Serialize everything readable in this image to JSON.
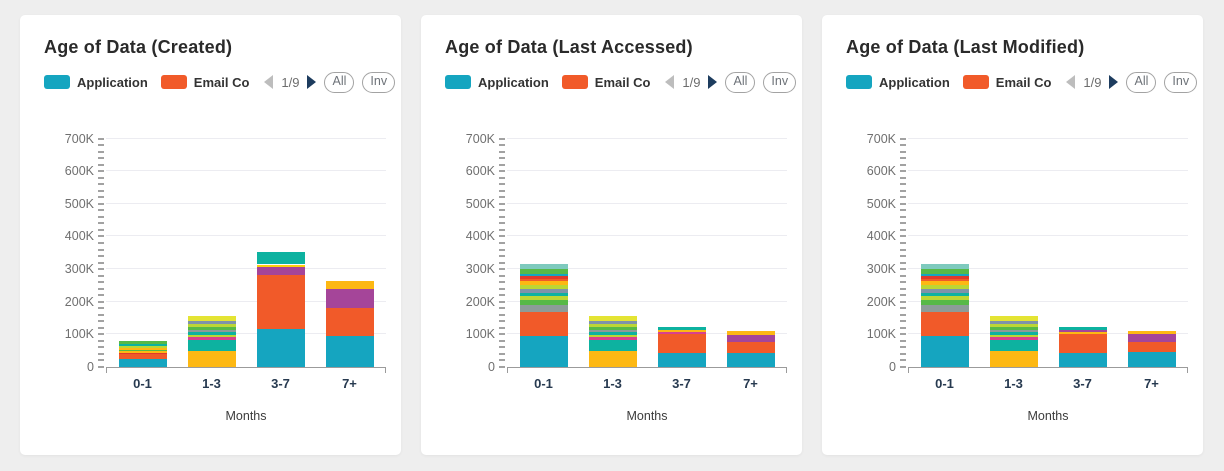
{
  "palette": {
    "teal": "#15a5c0",
    "orange": "#f15a29",
    "red": "#e0392b",
    "amber": "#fdb813",
    "yellow": "#fdd10c",
    "limeYellow": "#e4e433",
    "lime": "#bcd635",
    "green": "#57b947",
    "seaGreen": "#0db2a0",
    "ltTeal": "#7ecabe",
    "gray": "#8d9c98",
    "grayBlue": "#7f93a9",
    "magenta": "#d7418e",
    "purple": "#a54599",
    "next_arrow": "#1d3c5e",
    "prev_arrow": "#bdbdbd"
  },
  "chart_data": [
    {
      "type": "bar",
      "stacked": true,
      "title": "Age of Data (Created)",
      "xlabel": "Months",
      "ylabel": "",
      "unit": "thousands",
      "ylim": [
        0,
        700
      ],
      "ytick_step": 100,
      "yminor_step": 20,
      "grid": true,
      "categories": [
        "0-1",
        "1-3",
        "3-7",
        "7+"
      ],
      "totals_K": [
        78,
        157,
        353,
        263
      ],
      "bars": [
        {
          "category": "0-1",
          "segments": [
            {
              "color": "teal",
              "value": 24
            },
            {
              "color": "orange",
              "value": 14
            },
            {
              "color": "red",
              "value": 5
            },
            {
              "color": "amber",
              "value": 5
            },
            {
              "color": "green",
              "value": 5
            },
            {
              "color": "amber",
              "value": 5
            },
            {
              "color": "lime",
              "value": 6
            },
            {
              "color": "seaGreen",
              "value": 7
            },
            {
              "color": "green",
              "value": 7
            }
          ]
        },
        {
          "category": "1-3",
          "segments": [
            {
              "color": "amber",
              "value": 48
            },
            {
              "color": "seaGreen",
              "value": 34
            },
            {
              "color": "magenta",
              "value": 8
            },
            {
              "color": "lime",
              "value": 8
            },
            {
              "color": "seaGreen",
              "value": 8
            },
            {
              "color": "gray",
              "value": 8
            },
            {
              "color": "green",
              "value": 9
            },
            {
              "color": "lime",
              "value": 9
            },
            {
              "color": "grayBlue",
              "value": 8
            },
            {
              "color": "limeYellow",
              "value": 17
            }
          ]
        },
        {
          "category": "3-7",
          "segments": [
            {
              "color": "teal",
              "value": 115
            },
            {
              "color": "orange",
              "value": 167
            },
            {
              "color": "purple",
              "value": 24
            },
            {
              "color": "yellow",
              "value": 8
            },
            {
              "color": "seaGreen",
              "value": 39
            }
          ]
        },
        {
          "category": "7+",
          "segments": [
            {
              "color": "teal",
              "value": 95
            },
            {
              "color": "orange",
              "value": 85
            },
            {
              "color": "purple",
              "value": 58
            },
            {
              "color": "amber",
              "value": 25
            }
          ]
        }
      ]
    },
    {
      "type": "bar",
      "stacked": true,
      "title": "Age of Data (Last Accessed)",
      "xlabel": "Months",
      "ylabel": "",
      "unit": "thousands",
      "ylim": [
        0,
        700
      ],
      "ytick_step": 100,
      "yminor_step": 20,
      "grid": true,
      "categories": [
        "0-1",
        "1-3",
        "3-7",
        "7+"
      ],
      "totals_K": [
        315,
        157,
        123,
        110
      ],
      "bars": [
        {
          "category": "0-1",
          "segments": [
            {
              "color": "teal",
              "value": 95
            },
            {
              "color": "orange",
              "value": 72
            },
            {
              "color": "gray",
              "value": 22
            },
            {
              "color": "green",
              "value": 15
            },
            {
              "color": "lime",
              "value": 12
            },
            {
              "color": "seaGreen",
              "value": 12
            },
            {
              "color": "grayBlue",
              "value": 10
            },
            {
              "color": "lime",
              "value": 12
            },
            {
              "color": "amber",
              "value": 12
            },
            {
              "color": "orange",
              "value": 8
            },
            {
              "color": "red",
              "value": 8
            },
            {
              "color": "teal",
              "value": 8
            },
            {
              "color": "green",
              "value": 14
            },
            {
              "color": "ltTeal",
              "value": 15
            }
          ]
        },
        {
          "category": "1-3",
          "segments": [
            {
              "color": "amber",
              "value": 48
            },
            {
              "color": "seaGreen",
              "value": 34
            },
            {
              "color": "magenta",
              "value": 8
            },
            {
              "color": "lime",
              "value": 8
            },
            {
              "color": "seaGreen",
              "value": 8
            },
            {
              "color": "gray",
              "value": 8
            },
            {
              "color": "green",
              "value": 9
            },
            {
              "color": "lime",
              "value": 9
            },
            {
              "color": "grayBlue",
              "value": 8
            },
            {
              "color": "limeYellow",
              "value": 17
            }
          ]
        },
        {
          "category": "3-7",
          "segments": [
            {
              "color": "teal",
              "value": 42
            },
            {
              "color": "orange",
              "value": 58
            },
            {
              "color": "magenta",
              "value": 8
            },
            {
              "color": "amber",
              "value": 5
            },
            {
              "color": "seaGreen",
              "value": 10
            }
          ]
        },
        {
          "category": "7+",
          "segments": [
            {
              "color": "teal",
              "value": 42
            },
            {
              "color": "orange",
              "value": 33
            },
            {
              "color": "purple",
              "value": 22
            },
            {
              "color": "amber",
              "value": 13
            }
          ]
        }
      ]
    },
    {
      "type": "bar",
      "stacked": true,
      "title": "Age of Data (Last Modified)",
      "xlabel": "Months",
      "ylabel": "",
      "unit": "thousands",
      "ylim": [
        0,
        700
      ],
      "ytick_step": 100,
      "yminor_step": 20,
      "grid": true,
      "categories": [
        "0-1",
        "1-3",
        "3-7",
        "7+"
      ],
      "totals_K": [
        315,
        157,
        123,
        110
      ],
      "bars": [
        {
          "category": "0-1",
          "segments": [
            {
              "color": "teal",
              "value": 95
            },
            {
              "color": "orange",
              "value": 72
            },
            {
              "color": "gray",
              "value": 22
            },
            {
              "color": "green",
              "value": 15
            },
            {
              "color": "lime",
              "value": 12
            },
            {
              "color": "seaGreen",
              "value": 12
            },
            {
              "color": "grayBlue",
              "value": 10
            },
            {
              "color": "lime",
              "value": 12
            },
            {
              "color": "amber",
              "value": 12
            },
            {
              "color": "orange",
              "value": 8
            },
            {
              "color": "red",
              "value": 8
            },
            {
              "color": "teal",
              "value": 8
            },
            {
              "color": "green",
              "value": 14
            },
            {
              "color": "ltTeal",
              "value": 15
            }
          ]
        },
        {
          "category": "1-3",
          "segments": [
            {
              "color": "amber",
              "value": 48
            },
            {
              "color": "seaGreen",
              "value": 34
            },
            {
              "color": "magenta",
              "value": 8
            },
            {
              "color": "lime",
              "value": 8
            },
            {
              "color": "seaGreen",
              "value": 8
            },
            {
              "color": "gray",
              "value": 8
            },
            {
              "color": "green",
              "value": 9
            },
            {
              "color": "lime",
              "value": 9
            },
            {
              "color": "grayBlue",
              "value": 8
            },
            {
              "color": "limeYellow",
              "value": 17
            }
          ]
        },
        {
          "category": "3-7",
          "segments": [
            {
              "color": "teal",
              "value": 42
            },
            {
              "color": "orange",
              "value": 60
            },
            {
              "color": "amber",
              "value": 5
            },
            {
              "color": "purple",
              "value": 5
            },
            {
              "color": "seaGreen",
              "value": 11
            }
          ]
        },
        {
          "category": "7+",
          "segments": [
            {
              "color": "teal",
              "value": 45
            },
            {
              "color": "orange",
              "value": 30
            },
            {
              "color": "purple",
              "value": 25
            },
            {
              "color": "amber",
              "value": 10
            }
          ]
        }
      ]
    }
  ],
  "panels": [
    {
      "title": "Age of Data (Created)",
      "legend": {
        "items": [
          {
            "label": "Application",
            "color_key": "teal"
          },
          {
            "label": "Email Co",
            "color_key": "orange"
          }
        ],
        "page": "1/9",
        "all_label": "All",
        "inv_label": "Inv"
      }
    },
    {
      "title": "Age of Data (Last Accessed)",
      "legend": {
        "items": [
          {
            "label": "Application",
            "color_key": "teal"
          },
          {
            "label": "Email Co",
            "color_key": "orange"
          }
        ],
        "page": "1/9",
        "all_label": "All",
        "inv_label": "Inv"
      }
    },
    {
      "title": "Age of Data (Last Modified)",
      "legend": {
        "items": [
          {
            "label": "Application",
            "color_key": "teal"
          },
          {
            "label": "Email Co",
            "color_key": "orange"
          }
        ],
        "page": "1/9",
        "all_label": "All",
        "inv_label": "Inv"
      }
    }
  ]
}
